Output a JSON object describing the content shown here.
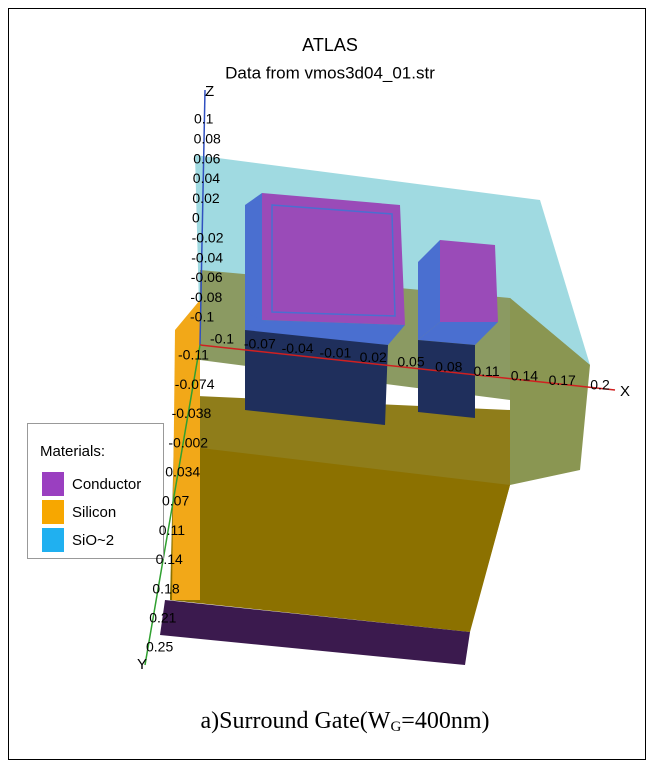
{
  "header": {
    "title": "ATLAS",
    "subtitle": "Data from vmos3d04_01.str"
  },
  "axes": {
    "z": {
      "label": "Z",
      "ticks": [
        "0.1",
        "0.08",
        "0.06",
        "0.04",
        "0.02",
        "0",
        "-0.02",
        "-0.04",
        "-0.06",
        "-0.08",
        "-0.1"
      ]
    },
    "x": {
      "label": "X",
      "ticks": [
        "-0.1",
        "-0.07",
        "-0.04",
        "-0.01",
        "0.02",
        "0.05",
        "0.08",
        "0.11",
        "0.14",
        "0.17",
        "0.2"
      ]
    },
    "y": {
      "label": "Y",
      "ticks": [
        "-0.11",
        "-0.074",
        "-0.038",
        "-0.002",
        "0.034",
        "0.07",
        "0.11",
        "0.14",
        "0.18",
        "0.21",
        "0.25"
      ]
    }
  },
  "legend": {
    "title": "Materials:",
    "items": [
      "Conductor",
      "Silicon",
      "SiO~2"
    ]
  },
  "caption": {
    "prefix": "a)Surround Gate(W",
    "subscript": "G",
    "suffix": "=400nm)"
  }
}
